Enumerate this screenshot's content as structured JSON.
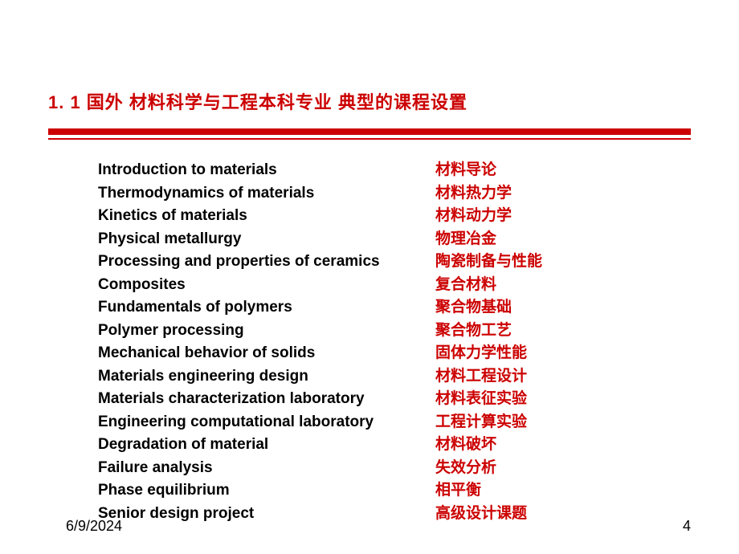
{
  "title": "1. 1   国外   材料科学与工程本科专业   典型的课程设置",
  "colors": {
    "accent": "#cc0000",
    "text_en": "#000000",
    "text_cn": "#cc0000",
    "background": "#ffffff"
  },
  "layout": {
    "divider_thick_height": 8,
    "divider_thin_height": 2,
    "course_column_en_width": 420,
    "font_size_title": 22,
    "font_size_body": 19,
    "font_size_footer": 18
  },
  "courses": [
    {
      "en": "Introduction to materials",
      "cn": "材料导论"
    },
    {
      "en": "Thermodynamics of materials",
      "cn": "材料热力学"
    },
    {
      "en": "Kinetics of materials",
      "cn": "材料动力学"
    },
    {
      "en": "Physical metallurgy",
      "cn": "物理冶金"
    },
    {
      "en": "Processing and properties of ceramics",
      "cn": "陶瓷制备与性能"
    },
    {
      "en": "Composites",
      "cn": "复合材料"
    },
    {
      "en": "Fundamentals of polymers",
      "cn": "聚合物基础"
    },
    {
      "en": "Polymer processing",
      "cn": "聚合物工艺"
    },
    {
      "en": "Mechanical behavior of solids",
      "cn": "固体力学性能"
    },
    {
      "en": "Materials engineering design",
      "cn": "材料工程设计"
    },
    {
      "en": "Materials characterization laboratory",
      "cn": "材料表征实验"
    },
    {
      "en": "Engineering computational laboratory",
      "cn": "工程计算实验"
    },
    {
      "en": "Degradation of material",
      "cn": "材料破坏"
    },
    {
      "en": "Failure analysis",
      "cn": "失效分析"
    },
    {
      "en": "Phase equilibrium",
      "cn": "相平衡"
    },
    {
      "en": "Senior design project",
      "cn": "高级设计课题"
    }
  ],
  "footer": {
    "date": "6/9/2024",
    "page": "4"
  }
}
